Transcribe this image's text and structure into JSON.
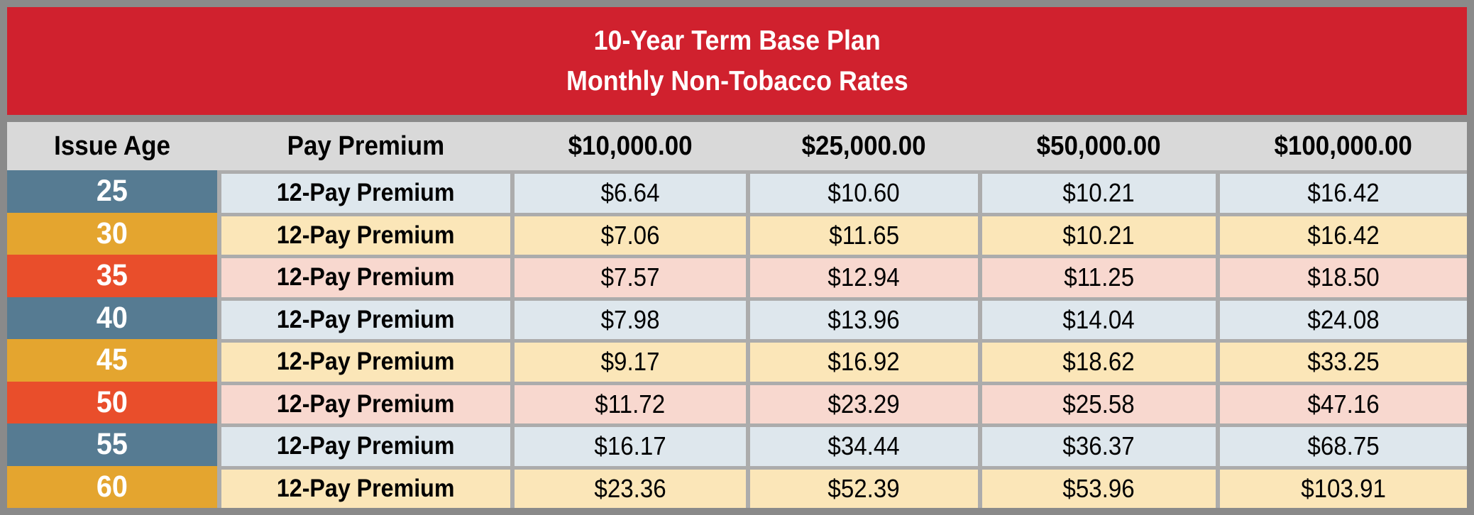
{
  "title": {
    "line1": "10-Year Term Base Plan",
    "line2": "Monthly Non-Tobacco Rates"
  },
  "table": {
    "columns": [
      "Issue Age",
      "Pay Premium",
      "$10,000.00",
      "$25,000.00",
      "$50,000.00",
      "$100,000.00"
    ],
    "rows": [
      {
        "age": "25",
        "premium_type": "12-Pay Premium",
        "theme": "blue",
        "rates": [
          "$6.64",
          "$10.60",
          "$10.21",
          "$16.42"
        ]
      },
      {
        "age": "30",
        "premium_type": "12-Pay Premium",
        "theme": "amber",
        "rates": [
          "$7.06",
          "$11.65",
          "$10.21",
          "$16.42"
        ]
      },
      {
        "age": "35",
        "premium_type": "12-Pay Premium",
        "theme": "red",
        "rates": [
          "$7.57",
          "$12.94",
          "$11.25",
          "$18.50"
        ]
      },
      {
        "age": "40",
        "premium_type": "12-Pay Premium",
        "theme": "blue",
        "rates": [
          "$7.98",
          "$13.96",
          "$14.04",
          "$24.08"
        ]
      },
      {
        "age": "45",
        "premium_type": "12-Pay Premium",
        "theme": "amber",
        "rates": [
          "$9.17",
          "$16.92",
          "$18.62",
          "$33.25"
        ]
      },
      {
        "age": "50",
        "premium_type": "12-Pay Premium",
        "theme": "red",
        "rates": [
          "$11.72",
          "$23.29",
          "$25.58",
          "$47.16"
        ]
      },
      {
        "age": "55",
        "premium_type": "12-Pay Premium",
        "theme": "blue",
        "rates": [
          "$16.17",
          "$34.44",
          "$36.37",
          "$68.75"
        ]
      },
      {
        "age": "60",
        "premium_type": "12-Pay Premium",
        "theme": "amber",
        "rates": [
          "$23.36",
          "$52.39",
          "$53.96",
          "$103.91"
        ]
      }
    ]
  },
  "colors": {
    "title_band_bg": "#D0212E",
    "title_text": "#FFFFFF",
    "header_bg": "#D9D9D9",
    "outer_border": "#8A8A8A",
    "gridline": "#ACACAC",
    "age_cell": {
      "blue": "#567B92",
      "amber": "#E4A52F",
      "red": "#E94E2B"
    },
    "row_cell": {
      "blue": "#DEE7ED",
      "amber": "#FBE6B8",
      "red": "#F8D8CF"
    }
  },
  "chart_data": {
    "type": "table",
    "title": "10-Year Term Base Plan Monthly Non-Tobacco Rates",
    "columns": [
      "Issue Age",
      "Pay Premium",
      "$10,000.00",
      "$25,000.00",
      "$50,000.00",
      "$100,000.00"
    ],
    "rows": [
      [
        "25",
        "12-Pay Premium",
        6.64,
        10.6,
        10.21,
        16.42
      ],
      [
        "30",
        "12-Pay Premium",
        7.06,
        11.65,
        10.21,
        16.42
      ],
      [
        "35",
        "12-Pay Premium",
        7.57,
        12.94,
        11.25,
        18.5
      ],
      [
        "40",
        "12-Pay Premium",
        7.98,
        13.96,
        14.04,
        24.08
      ],
      [
        "45",
        "12-Pay Premium",
        9.17,
        16.92,
        18.62,
        33.25
      ],
      [
        "50",
        "12-Pay Premium",
        11.72,
        23.29,
        25.58,
        47.16
      ],
      [
        "55",
        "12-Pay Premium",
        16.17,
        34.44,
        36.37,
        68.75
      ],
      [
        "60",
        "12-Pay Premium",
        23.36,
        52.39,
        53.96,
        103.91
      ]
    ]
  }
}
